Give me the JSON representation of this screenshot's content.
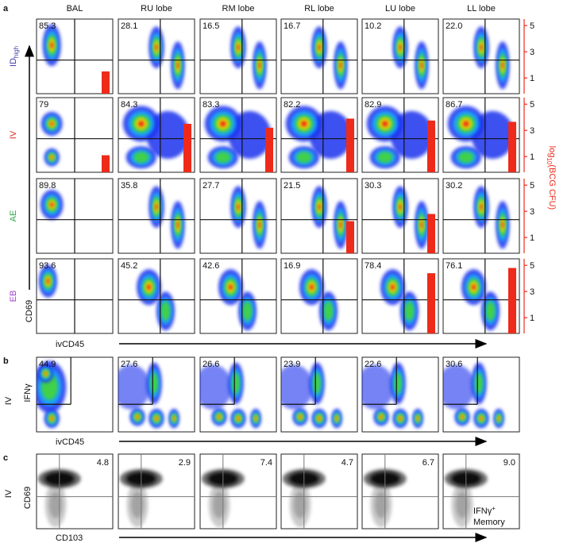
{
  "panel_a": {
    "letter": "a",
    "columns": [
      "BAL",
      "RU lobe",
      "RM lobe",
      "RL lobe",
      "LU lobe",
      "LL lobe"
    ],
    "rows": [
      {
        "text": "ID",
        "sub": "high",
        "color": "#3a3aa8"
      },
      {
        "text": "IV",
        "color": "#d7301f"
      },
      {
        "text": "AE",
        "color": "#2aa84a"
      },
      {
        "text": "EB",
        "color": "#a040d0"
      }
    ],
    "percents": [
      [
        "85.3",
        "28.1",
        "16.5",
        "16.7",
        "10.2",
        "22.0"
      ],
      [
        "79",
        "84.3",
        "83.3",
        "82.2",
        "82.9",
        "86.7"
      ],
      [
        "89.8",
        "35.8",
        "27.7",
        "21.5",
        "30.3",
        "30.2"
      ],
      [
        "93.6",
        "45.2",
        "42.6",
        "16.9",
        "78.4",
        "76.1"
      ]
    ],
    "x_label": "ivCD45",
    "y_label": "CD69",
    "cfu_label": {
      "prefix": "log",
      "sub": "10",
      "suffix": "(BCG CFU)"
    },
    "cfu_axis": {
      "range": [
        -0.2,
        5.5
      ],
      "ticks": [
        5,
        3,
        1
      ],
      "color": "#ee2a1a"
    },
    "cfu": [
      [
        1.5,
        null,
        null,
        null,
        null,
        null
      ],
      [
        1.1,
        3.5,
        3.2,
        3.9,
        3.75,
        3.65
      ],
      [
        null,
        null,
        null,
        2.25,
        2.8,
        null
      ],
      [
        null,
        null,
        null,
        null,
        4.4,
        4.8
      ]
    ]
  },
  "panel_b": {
    "letter": "b",
    "row_label": "IV",
    "y_label": "IFNγ",
    "x_label": "ivCD45",
    "percents": [
      "44.9",
      "27.6",
      "26.6",
      "23.9",
      "22.6",
      "30.6"
    ]
  },
  "panel_c": {
    "letter": "c",
    "row_label": "IV",
    "y_label": "CD69",
    "x_label": "CD103",
    "percents": [
      "4.8",
      "2.9",
      "7.4",
      "4.7",
      "6.7",
      "9.0"
    ],
    "legend": {
      "main": "IFNγ",
      "sup": "+",
      "secondary": "Memory"
    }
  }
}
